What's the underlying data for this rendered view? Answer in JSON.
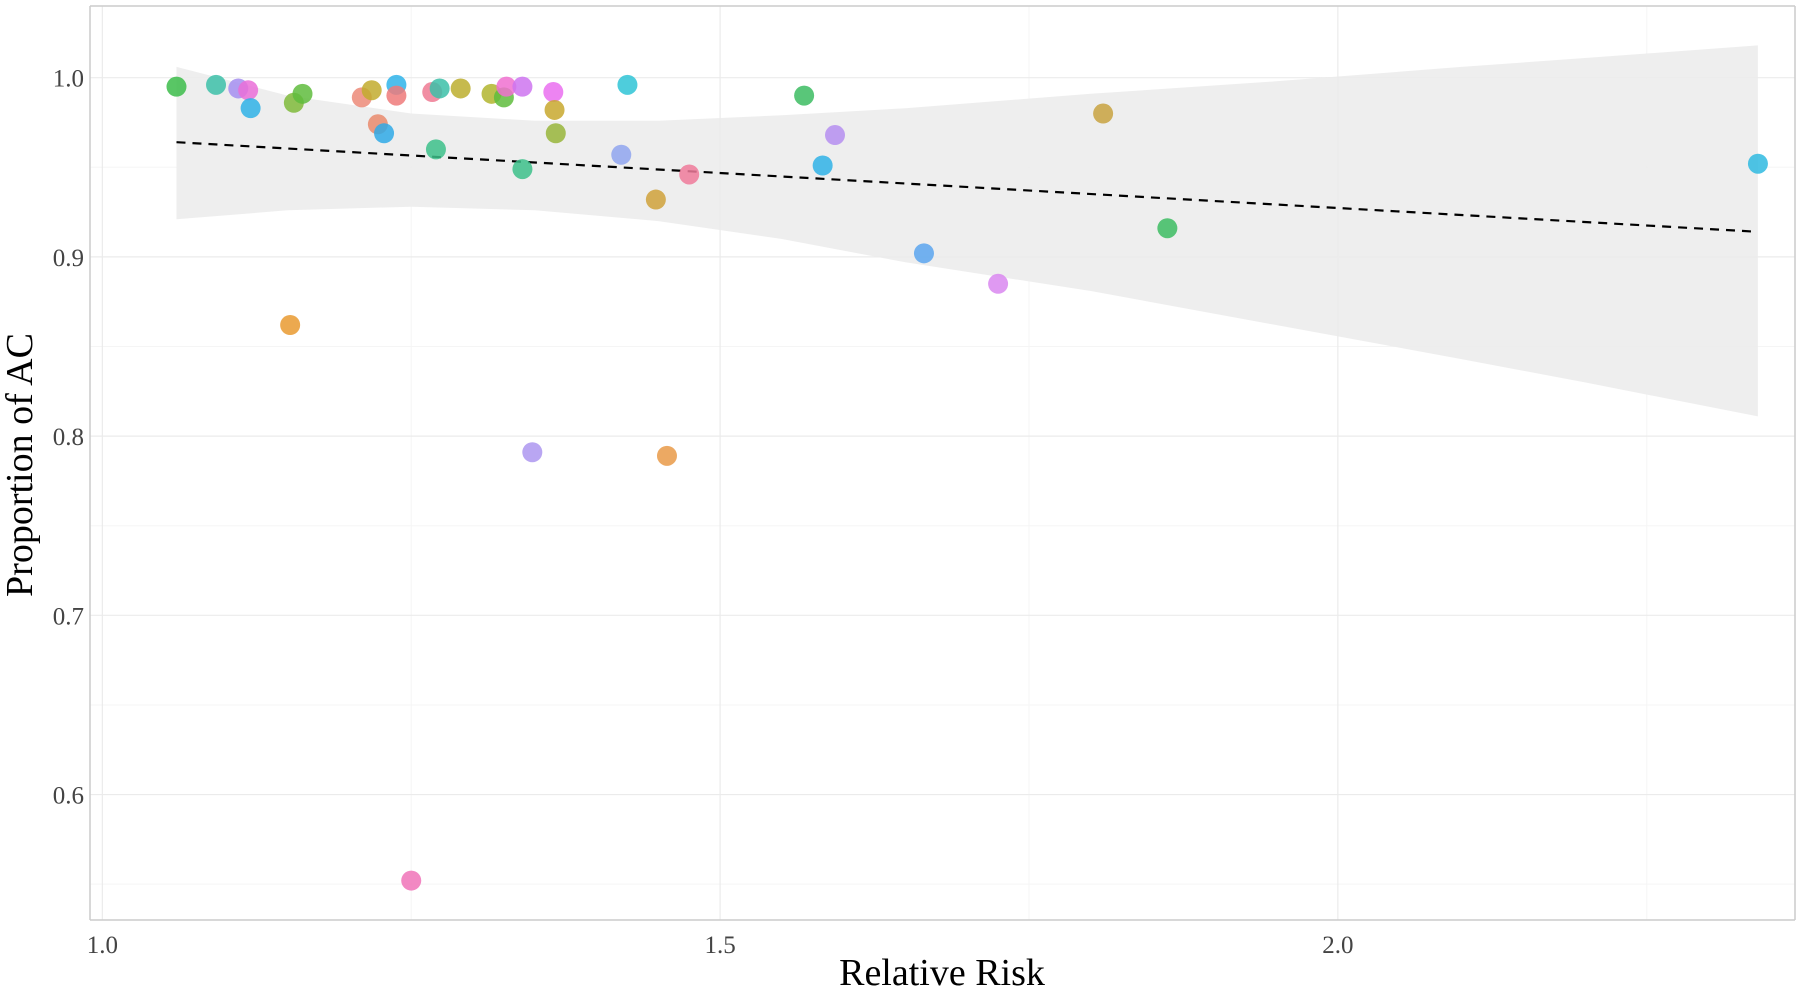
{
  "chart_data": {
    "type": "scatter",
    "title": "",
    "xlabel": "Relative Risk",
    "ylabel": "Proportion of AC",
    "xlim": [
      0.99,
      2.37
    ],
    "ylim": [
      0.53,
      1.04
    ],
    "x_ticks": [
      {
        "value": 1.0,
        "label": "1.0"
      },
      {
        "value": 1.5,
        "label": "1.5"
      },
      {
        "value": 2.0,
        "label": "2.0"
      }
    ],
    "y_ticks": [
      {
        "value": 0.6,
        "label": "0.6"
      },
      {
        "value": 0.7,
        "label": "0.7"
      },
      {
        "value": 0.8,
        "label": "0.8"
      },
      {
        "value": 0.9,
        "label": "0.9"
      },
      {
        "value": 1.0,
        "label": "1.0"
      }
    ],
    "grid": true,
    "legend": "none",
    "trend_line": {
      "style": "dashed",
      "color": "#000000",
      "x": [
        1.06,
        2.34
      ],
      "y": [
        0.964,
        0.914
      ]
    },
    "confidence_band": {
      "color": "#ebebeb",
      "x": [
        1.06,
        1.15,
        1.25,
        1.35,
        1.45,
        1.55,
        1.65,
        1.8,
        1.95,
        2.1,
        2.2,
        2.34
      ],
      "upper": [
        1.006,
        0.99,
        0.98,
        0.976,
        0.976,
        0.979,
        0.983,
        0.991,
        0.998,
        1.006,
        1.011,
        1.018
      ],
      "lower": [
        0.921,
        0.926,
        0.928,
        0.926,
        0.92,
        0.91,
        0.897,
        0.881,
        0.862,
        0.843,
        0.83,
        0.811
      ]
    },
    "points": [
      {
        "x": 1.06,
        "y": 0.995,
        "color": "#3cbc4a"
      },
      {
        "x": 1.092,
        "y": 0.996,
        "color": "#3cbfa8"
      },
      {
        "x": 1.11,
        "y": 0.994,
        "color": "#a58ef0"
      },
      {
        "x": 1.118,
        "y": 0.993,
        "color": "#ea6fd8"
      },
      {
        "x": 1.12,
        "y": 0.983,
        "color": "#2fb1e6"
      },
      {
        "x": 1.155,
        "y": 0.986,
        "color": "#7fba3a"
      },
      {
        "x": 1.162,
        "y": 0.991,
        "color": "#5fbc3d"
      },
      {
        "x": 1.152,
        "y": 0.862,
        "color": "#e99a30"
      },
      {
        "x": 1.21,
        "y": 0.989,
        "color": "#ec8a78"
      },
      {
        "x": 1.218,
        "y": 0.993,
        "color": "#c2ac2e"
      },
      {
        "x": 1.223,
        "y": 0.974,
        "color": "#e98a6c"
      },
      {
        "x": 1.228,
        "y": 0.969,
        "color": "#2fa9e6"
      },
      {
        "x": 1.238,
        "y": 0.996,
        "color": "#2fb4ea"
      },
      {
        "x": 1.238,
        "y": 0.99,
        "color": "#ef7a7a"
      },
      {
        "x": 1.27,
        "y": 0.96,
        "color": "#3cbf8a"
      },
      {
        "x": 1.267,
        "y": 0.992,
        "color": "#ef7a93"
      },
      {
        "x": 1.273,
        "y": 0.994,
        "color": "#3cbfa8"
      },
      {
        "x": 1.29,
        "y": 0.994,
        "color": "#bcae2e"
      },
      {
        "x": 1.315,
        "y": 0.991,
        "color": "#b2b52e"
      },
      {
        "x": 1.325,
        "y": 0.989,
        "color": "#5fbc3d"
      },
      {
        "x": 1.327,
        "y": 0.995,
        "color": "#f070d0"
      },
      {
        "x": 1.34,
        "y": 0.995,
        "color": "#ce74f0"
      },
      {
        "x": 1.34,
        "y": 0.949,
        "color": "#3cbf8a"
      },
      {
        "x": 1.348,
        "y": 0.791,
        "color": "#ad96f0"
      },
      {
        "x": 1.365,
        "y": 0.992,
        "color": "#ea6ff0"
      },
      {
        "x": 1.366,
        "y": 0.982,
        "color": "#c8a82e"
      },
      {
        "x": 1.367,
        "y": 0.969,
        "color": "#98b53a"
      },
      {
        "x": 1.25,
        "y": 0.552,
        "color": "#f073b8"
      },
      {
        "x": 1.42,
        "y": 0.957,
        "color": "#8fa4ee"
      },
      {
        "x": 1.425,
        "y": 0.996,
        "color": "#2fc4d6"
      },
      {
        "x": 1.448,
        "y": 0.932,
        "color": "#cfa13a"
      },
      {
        "x": 1.457,
        "y": 0.789,
        "color": "#e99a48"
      },
      {
        "x": 1.475,
        "y": 0.946,
        "color": "#ef7a9a"
      },
      {
        "x": 1.568,
        "y": 0.99,
        "color": "#3cbc62"
      },
      {
        "x": 1.583,
        "y": 0.951,
        "color": "#2fb1e6"
      },
      {
        "x": 1.593,
        "y": 0.968,
        "color": "#b58ef0"
      },
      {
        "x": 1.665,
        "y": 0.902,
        "color": "#5aa4ee"
      },
      {
        "x": 1.725,
        "y": 0.885,
        "color": "#d987f0"
      },
      {
        "x": 1.81,
        "y": 0.98,
        "color": "#c8a240"
      },
      {
        "x": 1.862,
        "y": 0.916,
        "color": "#3cbc62"
      },
      {
        "x": 2.34,
        "y": 0.952,
        "color": "#2fbae0"
      }
    ]
  }
}
